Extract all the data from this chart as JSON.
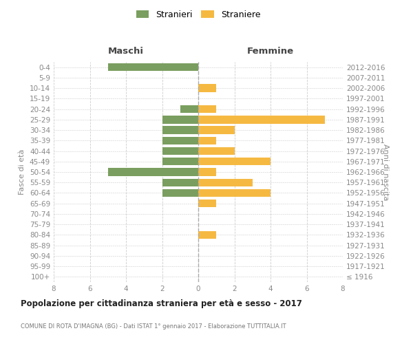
{
  "age_groups": [
    "100+",
    "95-99",
    "90-94",
    "85-89",
    "80-84",
    "75-79",
    "70-74",
    "65-69",
    "60-64",
    "55-59",
    "50-54",
    "45-49",
    "40-44",
    "35-39",
    "30-34",
    "25-29",
    "20-24",
    "15-19",
    "10-14",
    "5-9",
    "0-4"
  ],
  "birth_years": [
    "≤ 1916",
    "1917-1921",
    "1922-1926",
    "1927-1931",
    "1932-1936",
    "1937-1941",
    "1942-1946",
    "1947-1951",
    "1952-1956",
    "1957-1961",
    "1962-1966",
    "1967-1971",
    "1972-1976",
    "1977-1981",
    "1982-1986",
    "1987-1991",
    "1992-1996",
    "1997-2001",
    "2002-2006",
    "2007-2011",
    "2012-2016"
  ],
  "males": [
    0,
    0,
    0,
    0,
    0,
    0,
    0,
    0,
    2,
    2,
    5,
    2,
    2,
    2,
    2,
    2,
    1,
    0,
    0,
    0,
    5
  ],
  "females": [
    0,
    0,
    0,
    0,
    1,
    0,
    0,
    1,
    4,
    3,
    1,
    4,
    2,
    1,
    2,
    7,
    1,
    0,
    1,
    0,
    0
  ],
  "male_color": "#7a9e5f",
  "female_color": "#f5b942",
  "grid_color": "#cccccc",
  "axis_label_color": "#888888",
  "bg_color": "#ffffff",
  "title": "Popolazione per cittadinanza straniera per età e sesso - 2017",
  "subtitle": "COMUNE DI ROTA D'IMAGNA (BG) - Dati ISTAT 1° gennaio 2017 - Elaborazione TUTTITALIA.IT",
  "legend_stranieri": "Stranieri",
  "legend_straniere": "Straniere",
  "maschi_label": "Maschi",
  "femmine_label": "Femmine",
  "fasce_label": "Fasce di età",
  "anni_label": "Anni di nascita",
  "xlim": 8
}
